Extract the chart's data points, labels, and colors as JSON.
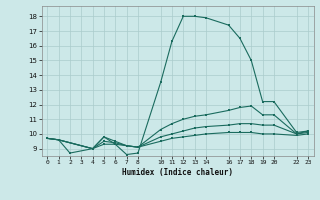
{
  "xlabel": "Humidex (Indice chaleur)",
  "bg_color": "#cce8e8",
  "grid_color": "#aacccc",
  "line_color": "#1a6b5e",
  "xlim": [
    -0.5,
    23.5
  ],
  "ylim": [
    8.5,
    18.7
  ],
  "xticks": [
    0,
    1,
    2,
    3,
    4,
    5,
    6,
    7,
    8,
    10,
    11,
    12,
    13,
    14,
    16,
    17,
    18,
    19,
    20,
    22,
    23
  ],
  "yticks": [
    9,
    10,
    11,
    12,
    13,
    14,
    15,
    16,
    17,
    18
  ],
  "line1_x": [
    0,
    1,
    2,
    4,
    5,
    6,
    7,
    8,
    10,
    11,
    12,
    13,
    14,
    16,
    17,
    18,
    19,
    20,
    22,
    23
  ],
  "line1_y": [
    9.7,
    9.6,
    8.7,
    9.0,
    9.8,
    9.3,
    8.6,
    8.7,
    13.5,
    16.3,
    18.0,
    18.0,
    17.9,
    17.4,
    16.5,
    15.0,
    12.2,
    12.2,
    10.1,
    10.2
  ],
  "line2_x": [
    0,
    1,
    4,
    5,
    6,
    7,
    8,
    10,
    11,
    12,
    13,
    14,
    16,
    17,
    18,
    19,
    20,
    22,
    23
  ],
  "line2_y": [
    9.7,
    9.6,
    9.0,
    9.8,
    9.5,
    9.2,
    9.1,
    10.3,
    10.7,
    11.0,
    11.2,
    11.3,
    11.6,
    11.8,
    11.9,
    11.3,
    11.3,
    10.0,
    10.2
  ],
  "line3_x": [
    0,
    1,
    4,
    5,
    6,
    7,
    8,
    10,
    11,
    12,
    13,
    14,
    16,
    17,
    18,
    19,
    20,
    22,
    23
  ],
  "line3_y": [
    9.7,
    9.6,
    9.0,
    9.5,
    9.4,
    9.2,
    9.1,
    9.8,
    10.0,
    10.2,
    10.4,
    10.5,
    10.6,
    10.7,
    10.7,
    10.6,
    10.6,
    10.0,
    10.1
  ],
  "line4_x": [
    0,
    1,
    4,
    5,
    6,
    7,
    8,
    10,
    11,
    12,
    13,
    14,
    16,
    17,
    18,
    19,
    20,
    22,
    23
  ],
  "line4_y": [
    9.7,
    9.6,
    9.0,
    9.3,
    9.3,
    9.2,
    9.1,
    9.5,
    9.7,
    9.8,
    9.9,
    10.0,
    10.1,
    10.1,
    10.1,
    10.0,
    10.0,
    9.9,
    10.0
  ]
}
